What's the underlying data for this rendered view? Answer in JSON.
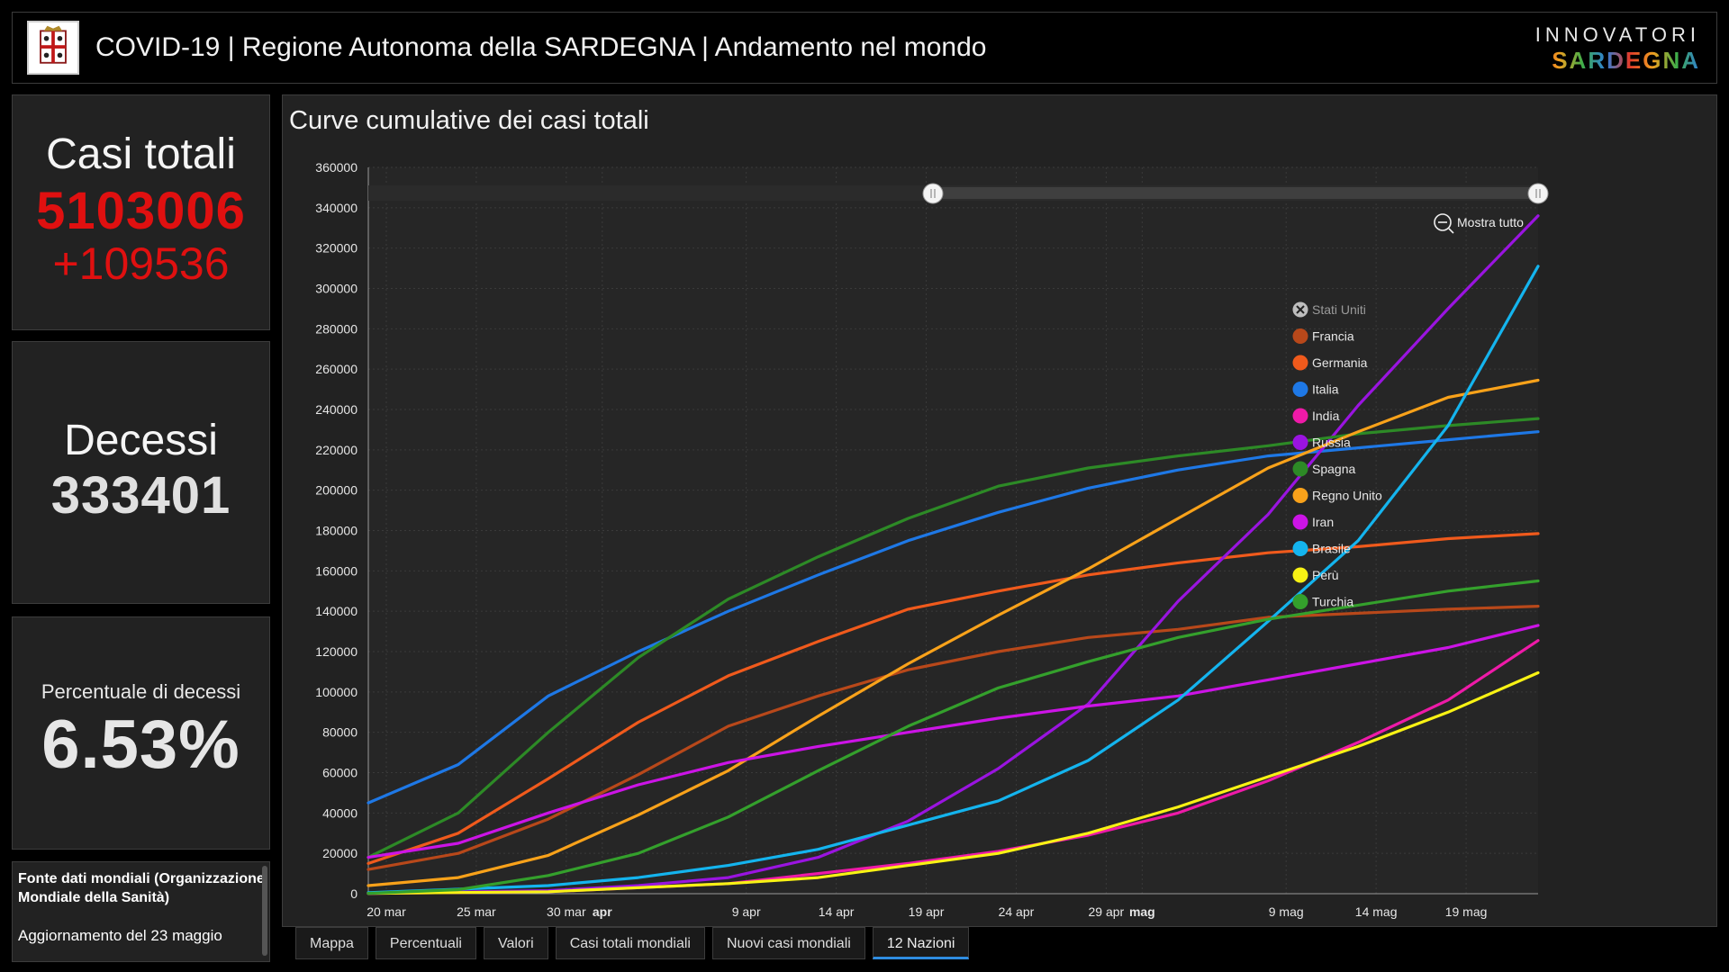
{
  "header": {
    "title": "COVID-19 | Regione Autonoma della SARDEGNA | Andamento nel mondo",
    "brand_top": "INNOVATORI",
    "brand_bottom": "SARDEGNA"
  },
  "cards": {
    "total_label": "Casi totali",
    "total_value": "5103006",
    "total_delta": "+109536",
    "deaths_label": "Decessi",
    "deaths_value": "333401",
    "pct_label": "Percentuale di decessi",
    "pct_value": "6.53%",
    "source_title": "Fonte dati mondiali (Organizzazione Mondiale della Sanità)",
    "source_update": "Aggiornamento del 23 maggio"
  },
  "chart_panel": {
    "title": "Curve cumulative dei casi totali",
    "zoom_label": "Mostra tutto"
  },
  "tabs": [
    "Mappa",
    "Percentuali",
    "Valori",
    "Casi totali mondiali",
    "Nuovi casi mondiali",
    "12 Nazioni"
  ],
  "active_tab": 5,
  "colors": {
    "accent": "#2f8de0",
    "red": "#e01010"
  },
  "chart_data": {
    "type": "line",
    "title": "Curve cumulative dei casi totali",
    "xlabel": "",
    "ylabel": "",
    "x_range": [
      "2020-03-19",
      "2020-05-23"
    ],
    "ylim": [
      0,
      360000
    ],
    "yticks": [
      0,
      20000,
      40000,
      60000,
      80000,
      100000,
      120000,
      140000,
      160000,
      180000,
      200000,
      220000,
      240000,
      260000,
      280000,
      300000,
      320000,
      340000,
      360000
    ],
    "xticks": [
      {
        "date": "2020-03-20",
        "label": "20 mar",
        "bold": false
      },
      {
        "date": "2020-03-25",
        "label": "25 mar",
        "bold": false
      },
      {
        "date": "2020-03-30",
        "label": "30 mar",
        "bold": false
      },
      {
        "date": "2020-04-01",
        "label": "apr",
        "bold": true
      },
      {
        "date": "2020-04-09",
        "label": "9 apr",
        "bold": false
      },
      {
        "date": "2020-04-14",
        "label": "14 apr",
        "bold": false
      },
      {
        "date": "2020-04-19",
        "label": "19 apr",
        "bold": false
      },
      {
        "date": "2020-04-24",
        "label": "24 apr",
        "bold": false
      },
      {
        "date": "2020-04-29",
        "label": "29 apr",
        "bold": false
      },
      {
        "date": "2020-05-01",
        "label": "mag",
        "bold": true
      },
      {
        "date": "2020-05-09",
        "label": "9 mag",
        "bold": false
      },
      {
        "date": "2020-05-14",
        "label": "14 mag",
        "bold": false
      },
      {
        "date": "2020-05-19",
        "label": "19 mag",
        "bold": false
      }
    ],
    "grid": true,
    "legend_position": "right",
    "series": [
      {
        "name": "Stati Uniti",
        "color": "#bbbbbb",
        "hidden": true,
        "points": []
      },
      {
        "name": "Francia",
        "color": "#b8481a",
        "points": [
          [
            "2020-03-19",
            12000
          ],
          [
            "2020-03-24",
            20000
          ],
          [
            "2020-03-29",
            37000
          ],
          [
            "2020-04-03",
            59000
          ],
          [
            "2020-04-08",
            83000
          ],
          [
            "2020-04-13",
            98000
          ],
          [
            "2020-04-18",
            111000
          ],
          [
            "2020-04-23",
            120000
          ],
          [
            "2020-04-28",
            127000
          ],
          [
            "2020-05-03",
            131000
          ],
          [
            "2020-05-08",
            137000
          ],
          [
            "2020-05-13",
            139000
          ],
          [
            "2020-05-18",
            141000
          ],
          [
            "2020-05-23",
            142500
          ]
        ]
      },
      {
        "name": "Germania",
        "color": "#f05a1c",
        "points": [
          [
            "2020-03-19",
            15000
          ],
          [
            "2020-03-24",
            30000
          ],
          [
            "2020-03-29",
            57000
          ],
          [
            "2020-04-03",
            85000
          ],
          [
            "2020-04-08",
            108000
          ],
          [
            "2020-04-13",
            125000
          ],
          [
            "2020-04-18",
            141000
          ],
          [
            "2020-04-23",
            150000
          ],
          [
            "2020-04-28",
            158000
          ],
          [
            "2020-05-03",
            164000
          ],
          [
            "2020-05-08",
            169000
          ],
          [
            "2020-05-13",
            172000
          ],
          [
            "2020-05-18",
            176000
          ],
          [
            "2020-05-23",
            178500
          ]
        ]
      },
      {
        "name": "Italia",
        "color": "#1e78e6",
        "points": [
          [
            "2020-03-19",
            45000
          ],
          [
            "2020-03-24",
            64000
          ],
          [
            "2020-03-29",
            98000
          ],
          [
            "2020-04-03",
            120000
          ],
          [
            "2020-04-08",
            140000
          ],
          [
            "2020-04-13",
            158000
          ],
          [
            "2020-04-18",
            175000
          ],
          [
            "2020-04-23",
            189000
          ],
          [
            "2020-04-28",
            201000
          ],
          [
            "2020-05-03",
            210000
          ],
          [
            "2020-05-08",
            217000
          ],
          [
            "2020-05-13",
            221000
          ],
          [
            "2020-05-18",
            225000
          ],
          [
            "2020-05-23",
            229000
          ]
        ]
      },
      {
        "name": "India",
        "color": "#ee1aa8",
        "points": [
          [
            "2020-03-19",
            200
          ],
          [
            "2020-03-29",
            1000
          ],
          [
            "2020-04-08",
            5000
          ],
          [
            "2020-04-13",
            10000
          ],
          [
            "2020-04-18",
            15000
          ],
          [
            "2020-04-23",
            21000
          ],
          [
            "2020-04-28",
            29000
          ],
          [
            "2020-05-03",
            40000
          ],
          [
            "2020-05-08",
            56000
          ],
          [
            "2020-05-13",
            75000
          ],
          [
            "2020-05-18",
            96000
          ],
          [
            "2020-05-23",
            125500
          ]
        ]
      },
      {
        "name": "Russia",
        "color": "#9a14e0",
        "points": [
          [
            "2020-03-19",
            200
          ],
          [
            "2020-03-29",
            1500
          ],
          [
            "2020-04-03",
            4000
          ],
          [
            "2020-04-08",
            8000
          ],
          [
            "2020-04-13",
            18000
          ],
          [
            "2020-04-18",
            36000
          ],
          [
            "2020-04-23",
            62000
          ],
          [
            "2020-04-28",
            94000
          ],
          [
            "2020-05-03",
            145000
          ],
          [
            "2020-05-08",
            188000
          ],
          [
            "2020-05-13",
            242000
          ],
          [
            "2020-05-18",
            290000
          ],
          [
            "2020-05-23",
            336000
          ]
        ]
      },
      {
        "name": "Spagna",
        "color": "#2d8a26",
        "points": [
          [
            "2020-03-19",
            18000
          ],
          [
            "2020-03-24",
            40000
          ],
          [
            "2020-03-29",
            80000
          ],
          [
            "2020-04-03",
            117000
          ],
          [
            "2020-04-08",
            146000
          ],
          [
            "2020-04-13",
            167000
          ],
          [
            "2020-04-18",
            186000
          ],
          [
            "2020-04-23",
            202000
          ],
          [
            "2020-04-28",
            211000
          ],
          [
            "2020-05-03",
            217000
          ],
          [
            "2020-05-08",
            222000
          ],
          [
            "2020-05-13",
            228000
          ],
          [
            "2020-05-18",
            232000
          ],
          [
            "2020-05-23",
            235500
          ]
        ]
      },
      {
        "name": "Regno Unito",
        "color": "#f9a21a",
        "points": [
          [
            "2020-03-19",
            4000
          ],
          [
            "2020-03-24",
            8000
          ],
          [
            "2020-03-29",
            19000
          ],
          [
            "2020-04-03",
            39000
          ],
          [
            "2020-04-08",
            61000
          ],
          [
            "2020-04-13",
            88000
          ],
          [
            "2020-04-18",
            114000
          ],
          [
            "2020-04-23",
            138000
          ],
          [
            "2020-04-28",
            161000
          ],
          [
            "2020-05-03",
            186000
          ],
          [
            "2020-05-08",
            211000
          ],
          [
            "2020-05-13",
            229000
          ],
          [
            "2020-05-18",
            246000
          ],
          [
            "2020-05-23",
            254500
          ]
        ]
      },
      {
        "name": "Iran",
        "color": "#cc14e6",
        "points": [
          [
            "2020-03-19",
            18000
          ],
          [
            "2020-03-24",
            25000
          ],
          [
            "2020-03-29",
            40000
          ],
          [
            "2020-04-03",
            54000
          ],
          [
            "2020-04-08",
            65000
          ],
          [
            "2020-04-13",
            73000
          ],
          [
            "2020-04-18",
            80000
          ],
          [
            "2020-04-23",
            87000
          ],
          [
            "2020-04-28",
            93000
          ],
          [
            "2020-05-03",
            98000
          ],
          [
            "2020-05-08",
            106000
          ],
          [
            "2020-05-13",
            114000
          ],
          [
            "2020-05-18",
            122000
          ],
          [
            "2020-05-23",
            133000
          ]
        ]
      },
      {
        "name": "Brasile",
        "color": "#14b4ee",
        "points": [
          [
            "2020-03-19",
            500
          ],
          [
            "2020-03-29",
            4000
          ],
          [
            "2020-04-03",
            8000
          ],
          [
            "2020-04-08",
            14000
          ],
          [
            "2020-04-13",
            22000
          ],
          [
            "2020-04-18",
            34000
          ],
          [
            "2020-04-23",
            46000
          ],
          [
            "2020-04-28",
            66000
          ],
          [
            "2020-05-03",
            96000
          ],
          [
            "2020-05-08",
            135000
          ],
          [
            "2020-05-13",
            175000
          ],
          [
            "2020-05-18",
            232000
          ],
          [
            "2020-05-23",
            311000
          ]
        ]
      },
      {
        "name": "Perù",
        "color": "#f8f214",
        "points": [
          [
            "2020-03-19",
            200
          ],
          [
            "2020-03-29",
            1000
          ],
          [
            "2020-04-08",
            5000
          ],
          [
            "2020-04-13",
            8000
          ],
          [
            "2020-04-18",
            14000
          ],
          [
            "2020-04-23",
            20000
          ],
          [
            "2020-04-28",
            30000
          ],
          [
            "2020-05-03",
            43000
          ],
          [
            "2020-05-08",
            58000
          ],
          [
            "2020-05-13",
            73000
          ],
          [
            "2020-05-18",
            90000
          ],
          [
            "2020-05-23",
            109500
          ]
        ]
      },
      {
        "name": "Turchia",
        "color": "#34a02c",
        "points": [
          [
            "2020-03-19",
            200
          ],
          [
            "2020-03-24",
            2000
          ],
          [
            "2020-03-29",
            9000
          ],
          [
            "2020-04-03",
            20000
          ],
          [
            "2020-04-08",
            38000
          ],
          [
            "2020-04-13",
            61000
          ],
          [
            "2020-04-18",
            83000
          ],
          [
            "2020-04-23",
            102000
          ],
          [
            "2020-04-28",
            115000
          ],
          [
            "2020-05-03",
            127000
          ],
          [
            "2020-05-08",
            136000
          ],
          [
            "2020-05-13",
            143000
          ],
          [
            "2020-05-18",
            150000
          ],
          [
            "2020-05-23",
            155000
          ]
        ]
      }
    ]
  }
}
